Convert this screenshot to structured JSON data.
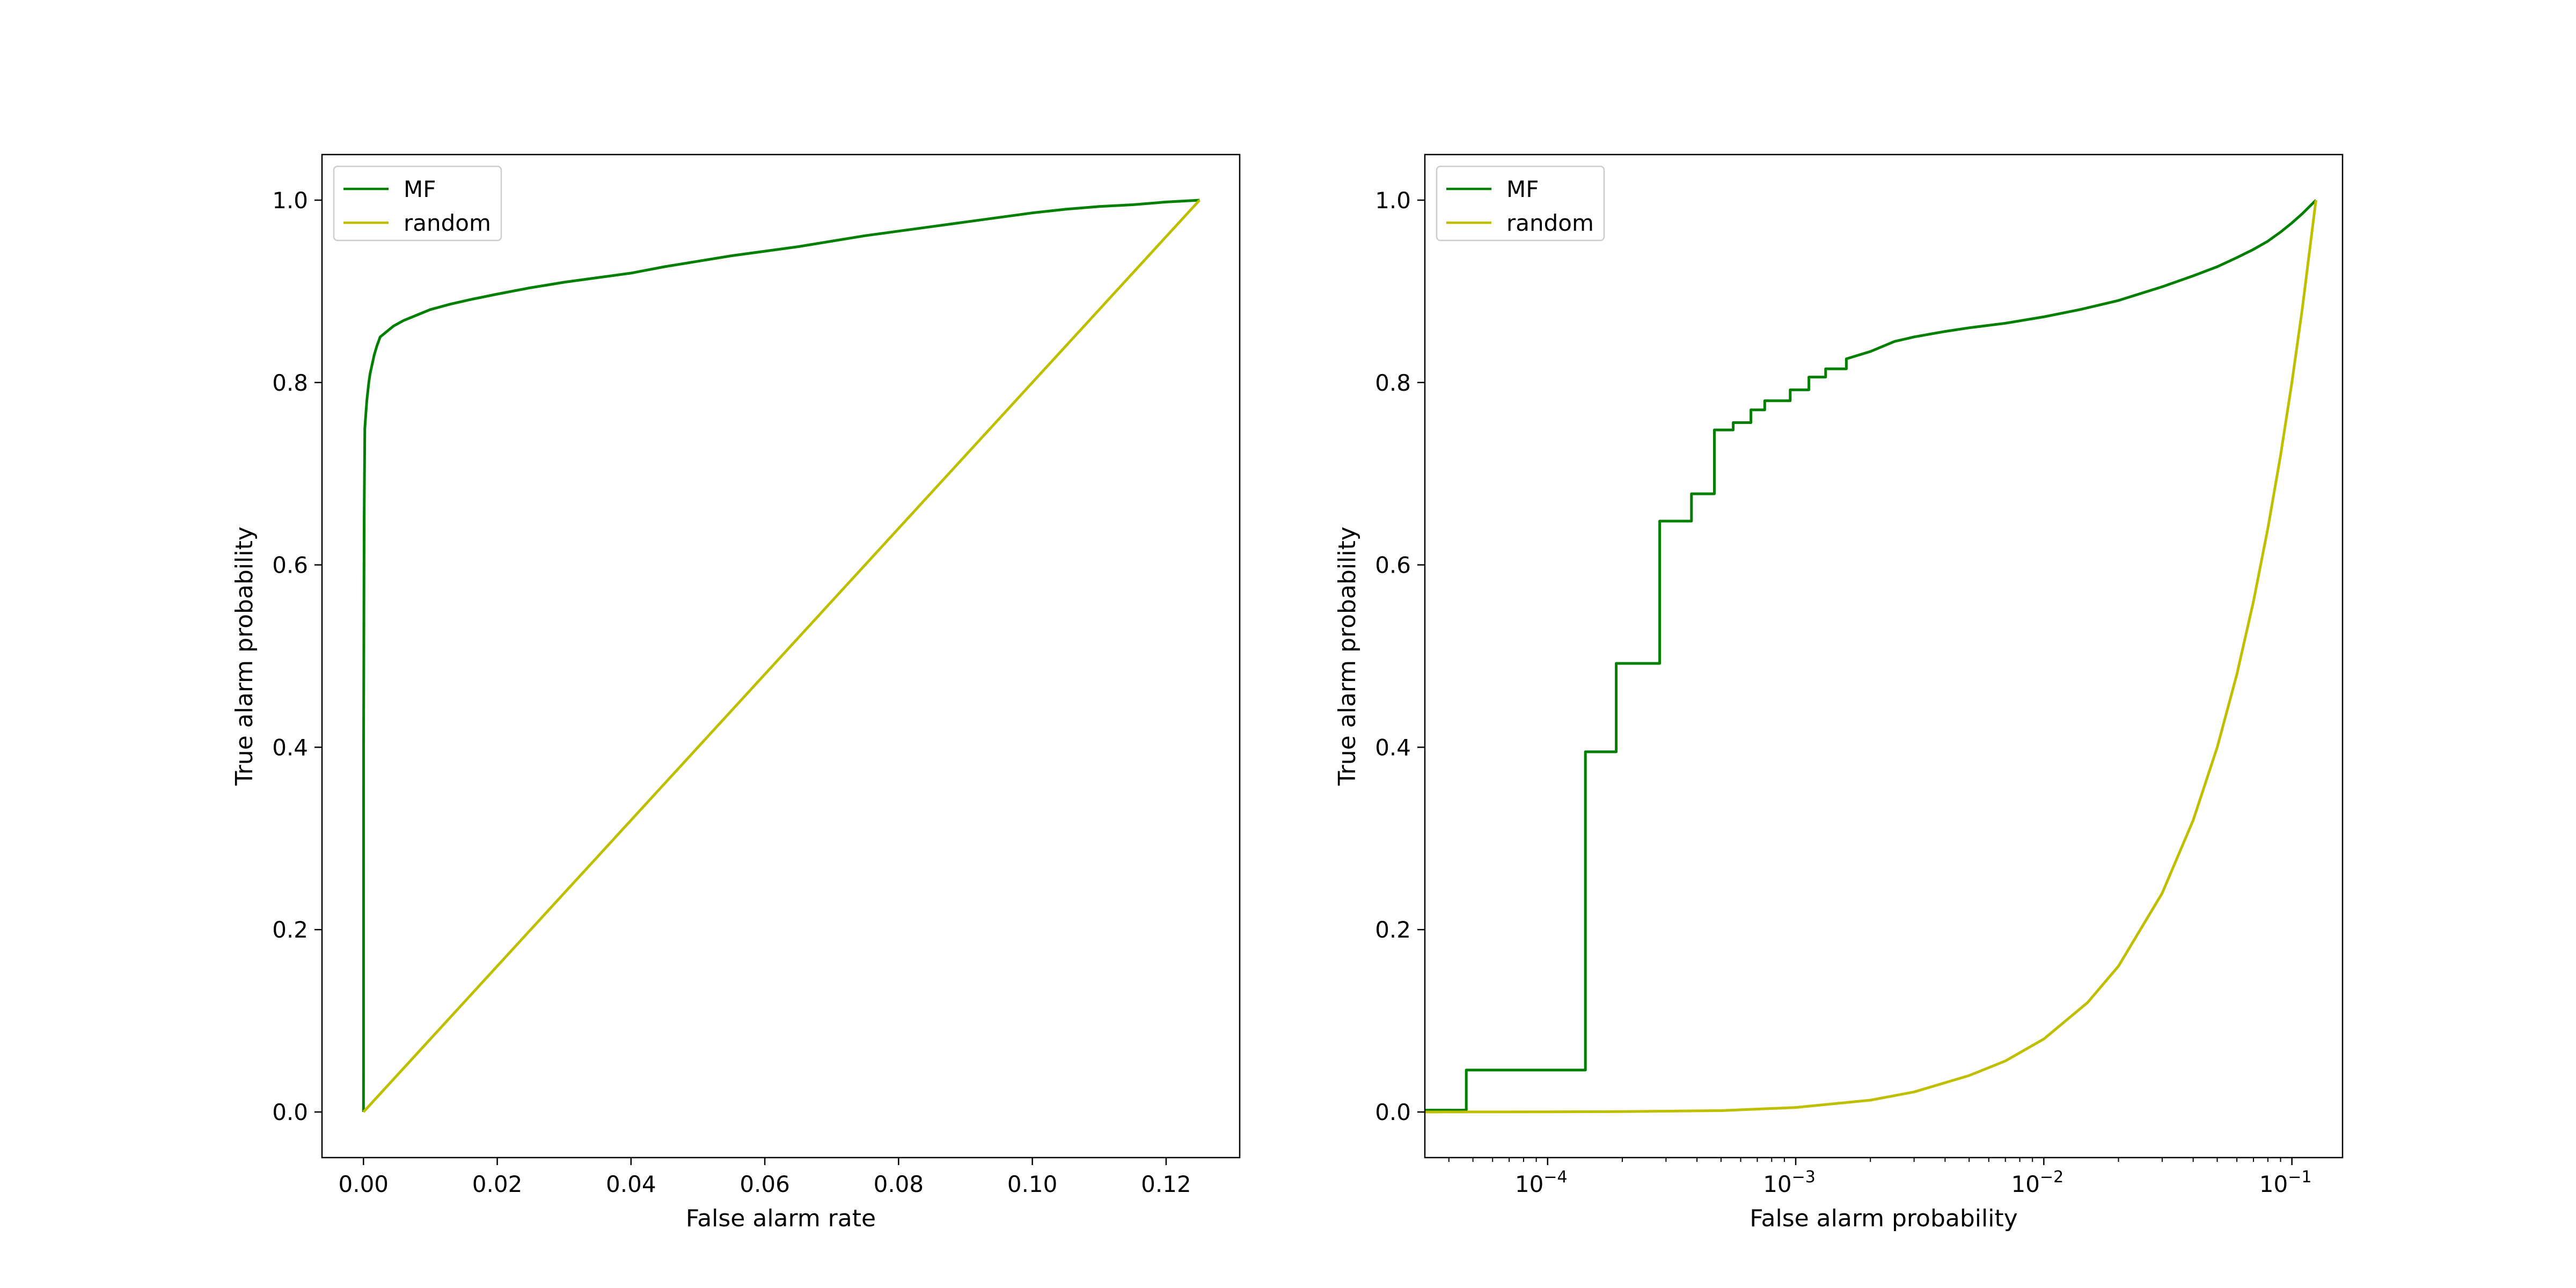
{
  "colors": {
    "mf": "#007f00",
    "random": "#bfbf00",
    "axes": "#000000",
    "background": "#ffffff"
  },
  "chart_data": [
    {
      "type": "line",
      "xlabel": "False alarm rate",
      "ylabel": "True alarm probability",
      "xscale": "linear",
      "xlim": [
        -0.0062,
        0.131
      ],
      "ylim": [
        -0.05,
        1.05
      ],
      "xticks": [
        {
          "value": 0.0,
          "label": "0.00"
        },
        {
          "value": 0.02,
          "label": "0.02"
        },
        {
          "value": 0.04,
          "label": "0.04"
        },
        {
          "value": 0.06,
          "label": "0.06"
        },
        {
          "value": 0.08,
          "label": "0.08"
        },
        {
          "value": 0.1,
          "label": "0.10"
        },
        {
          "value": 0.12,
          "label": "0.12"
        }
      ],
      "yticks": [
        {
          "value": 0.0,
          "label": "0.0"
        },
        {
          "value": 0.2,
          "label": "0.2"
        },
        {
          "value": 0.4,
          "label": "0.4"
        },
        {
          "value": 0.6,
          "label": "0.6"
        },
        {
          "value": 0.8,
          "label": "0.8"
        },
        {
          "value": 1.0,
          "label": "1.0"
        }
      ],
      "legend": {
        "position": "upper left",
        "entries": [
          "MF",
          "random"
        ]
      },
      "series": [
        {
          "name": "MF",
          "color": "#007f00",
          "x": [
            0.0,
            1e-05,
            2e-05,
            5e-05,
            0.0001,
            0.0002,
            0.0003,
            0.0005,
            0.0008,
            0.001,
            0.0013,
            0.0016,
            0.002,
            0.0025,
            0.003,
            0.0035,
            0.0045,
            0.006,
            0.008,
            0.01,
            0.013,
            0.016,
            0.02,
            0.025,
            0.03,
            0.035,
            0.04,
            0.045,
            0.05,
            0.055,
            0.06,
            0.065,
            0.07,
            0.075,
            0.08,
            0.085,
            0.09,
            0.095,
            0.1,
            0.105,
            0.11,
            0.115,
            0.12,
            0.125
          ],
          "y": [
            0.0,
            0.05,
            0.4,
            0.49,
            0.65,
            0.75,
            0.76,
            0.78,
            0.8,
            0.81,
            0.82,
            0.83,
            0.84,
            0.85,
            0.853,
            0.856,
            0.862,
            0.868,
            0.874,
            0.88,
            0.886,
            0.891,
            0.897,
            0.904,
            0.91,
            0.915,
            0.92,
            0.927,
            0.933,
            0.939,
            0.944,
            0.949,
            0.955,
            0.961,
            0.966,
            0.971,
            0.976,
            0.981,
            0.986,
            0.99,
            0.993,
            0.995,
            0.998,
            1.0
          ]
        },
        {
          "name": "random",
          "color": "#bfbf00",
          "x": [
            0.0,
            0.125
          ],
          "y": [
            0.0,
            1.0
          ]
        }
      ]
    },
    {
      "type": "line",
      "xlabel": "False alarm probability",
      "ylabel": "True alarm probability",
      "xscale": "log",
      "xlim": [
        3.2e-05,
        0.16
      ],
      "ylim": [
        -0.05,
        1.05
      ],
      "xticks": [
        {
          "value": 0.0001,
          "label": "10",
          "exp": "−4"
        },
        {
          "value": 0.001,
          "label": "10",
          "exp": "−3"
        },
        {
          "value": 0.01,
          "label": "10",
          "exp": "−2"
        },
        {
          "value": 0.1,
          "label": "10",
          "exp": "−1"
        }
      ],
      "yticks": [
        {
          "value": 0.0,
          "label": "0.0"
        },
        {
          "value": 0.2,
          "label": "0.2"
        },
        {
          "value": 0.4,
          "label": "0.4"
        },
        {
          "value": 0.6,
          "label": "0.6"
        },
        {
          "value": 0.8,
          "label": "0.8"
        },
        {
          "value": 1.0,
          "label": "1.0"
        }
      ],
      "legend": {
        "position": "upper left",
        "entries": [
          "MF",
          "random"
        ]
      },
      "series": [
        {
          "name": "MF",
          "color": "#007f00",
          "step": true,
          "x": [
            3.2e-05,
            4.7e-05,
            4.7e-05,
            0.000142,
            0.000142,
            0.000189,
            0.000189,
            0.000283,
            0.000283,
            0.00038,
            0.00038,
            0.00047,
            0.00047,
            0.00056,
            0.00056,
            0.00066,
            0.00066,
            0.00075,
            0.00075,
            0.00095,
            0.00095,
            0.00113,
            0.00113,
            0.00132,
            0.00132,
            0.0016,
            0.0016,
            0.002,
            0.0025,
            0.003,
            0.004,
            0.005,
            0.007,
            0.01,
            0.014,
            0.02,
            0.03,
            0.04,
            0.05,
            0.06,
            0.07,
            0.08,
            0.09,
            0.1,
            0.11,
            0.125
          ],
          "y": [
            0.002,
            0.002,
            0.046,
            0.046,
            0.395,
            0.395,
            0.492,
            0.492,
            0.648,
            0.648,
            0.678,
            0.678,
            0.748,
            0.748,
            0.756,
            0.756,
            0.77,
            0.77,
            0.78,
            0.78,
            0.792,
            0.792,
            0.806,
            0.806,
            0.815,
            0.815,
            0.826,
            0.834,
            0.845,
            0.85,
            0.856,
            0.86,
            0.865,
            0.872,
            0.88,
            0.89,
            0.905,
            0.917,
            0.927,
            0.937,
            0.946,
            0.955,
            0.965,
            0.975,
            0.985,
            1.0
          ]
        },
        {
          "name": "random",
          "color": "#bfbf00",
          "x": [
            3.2e-05,
            5e-05,
            0.0001,
            0.0002,
            0.0005,
            0.001,
            0.002,
            0.003,
            0.005,
            0.007,
            0.01,
            0.015,
            0.02,
            0.03,
            0.04,
            0.05,
            0.06,
            0.07,
            0.08,
            0.09,
            0.1,
            0.11,
            0.125
          ],
          "y": [
            0.0,
            0.0001,
            0.0002,
            0.0005,
            0.0015,
            0.005,
            0.013,
            0.022,
            0.04,
            0.056,
            0.08,
            0.12,
            0.16,
            0.24,
            0.32,
            0.4,
            0.48,
            0.56,
            0.64,
            0.72,
            0.8,
            0.88,
            1.0
          ]
        }
      ]
    }
  ]
}
